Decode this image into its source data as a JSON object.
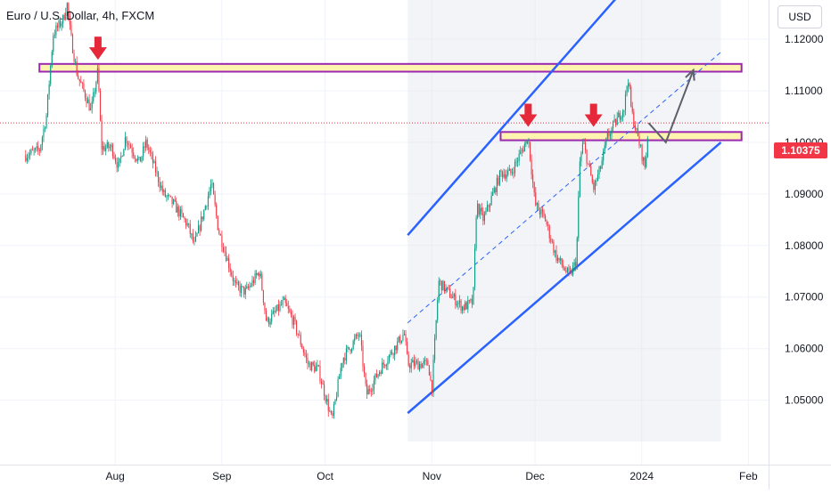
{
  "chart_title": "Euro / U.S. Dollar, 4h, FXCM",
  "currency_button": "USD",
  "current_price_label": "1.10375",
  "colors": {
    "up": "#089981",
    "down": "#f23645",
    "channel": "#2962ff",
    "zone_fill": "#fff3b0",
    "zone_border": "#9c27b0",
    "projection": "#5d606b",
    "marker": "#e5293a"
  },
  "chart_data": {
    "type": "candlestick",
    "symbol": "Euro / U.S. Dollar",
    "timeframe": "4h",
    "source": "FXCM",
    "x_tick_labels": [
      "Aug",
      "Sep",
      "Oct",
      "Nov",
      "Dec",
      "2024",
      "Feb"
    ],
    "y_tick_labels": [
      "1.12000",
      "1.11000",
      "1.10000",
      "1.09000",
      "1.08000",
      "1.07000",
      "1.06000",
      "1.05000"
    ],
    "ylim": [
      1.0415,
      1.1315
    ],
    "y_scale": "linear",
    "grid": true,
    "current_price": 1.10375,
    "price_path": [
      [
        "2023-07-06",
        1.0975
      ],
      [
        "2023-07-10",
        1.0985
      ],
      [
        "2023-07-12",
        1.105
      ],
      [
        "2023-07-14",
        1.121
      ],
      [
        "2023-07-17",
        1.124
      ],
      [
        "2023-07-18",
        1.127
      ],
      [
        "2023-07-19",
        1.121
      ],
      [
        "2023-07-21",
        1.113
      ],
      [
        "2023-07-24",
        1.108
      ],
      [
        "2023-07-25",
        1.106
      ],
      [
        "2023-07-27",
        1.114
      ],
      [
        "2023-07-28",
        1.099
      ],
      [
        "2023-07-31",
        1.099
      ],
      [
        "2023-08-02",
        1.095
      ],
      [
        "2023-08-04",
        1.101
      ],
      [
        "2023-08-08",
        1.096
      ],
      [
        "2023-08-10",
        1.1
      ],
      [
        "2023-08-15",
        1.09
      ],
      [
        "2023-08-18",
        1.088
      ],
      [
        "2023-08-22",
        1.084
      ],
      [
        "2023-08-24",
        1.08
      ],
      [
        "2023-08-29",
        1.092
      ],
      [
        "2023-08-31",
        1.083
      ],
      [
        "2023-09-05",
        1.072
      ],
      [
        "2023-09-08",
        1.071
      ],
      [
        "2023-09-12",
        1.075
      ],
      [
        "2023-09-14",
        1.065
      ],
      [
        "2023-09-19",
        1.069
      ],
      [
        "2023-09-22",
        1.065
      ],
      [
        "2023-09-26",
        1.057
      ],
      [
        "2023-09-29",
        1.056
      ],
      [
        "2023-10-03",
        1.046
      ],
      [
        "2023-10-06",
        1.058
      ],
      [
        "2023-10-11",
        1.063
      ],
      [
        "2023-10-13",
        1.051
      ],
      [
        "2023-10-17",
        1.056
      ],
      [
        "2023-10-20",
        1.059
      ],
      [
        "2023-10-24",
        1.063
      ],
      [
        "2023-10-25",
        1.057
      ],
      [
        "2023-10-27",
        1.057
      ],
      [
        "2023-10-31",
        1.057
      ],
      [
        "2023-11-01",
        1.052
      ],
      [
        "2023-11-03",
        1.073
      ],
      [
        "2023-11-07",
        1.07
      ],
      [
        "2023-11-10",
        1.068
      ],
      [
        "2023-11-13",
        1.069
      ],
      [
        "2023-11-14",
        1.088
      ],
      [
        "2023-11-16",
        1.085
      ],
      [
        "2023-11-21",
        1.094
      ],
      [
        "2023-11-24",
        1.094
      ],
      [
        "2023-11-29",
        1.101
      ],
      [
        "2023-12-01",
        1.088
      ],
      [
        "2023-12-04",
        1.085
      ],
      [
        "2023-12-07",
        1.078
      ],
      [
        "2023-12-11",
        1.074
      ],
      [
        "2023-12-13",
        1.077
      ],
      [
        "2023-12-14",
        1.096
      ],
      [
        "2023-12-15",
        1.1
      ],
      [
        "2023-12-18",
        1.091
      ],
      [
        "2023-12-20",
        1.095
      ],
      [
        "2023-12-22",
        1.101
      ],
      [
        "2023-12-27",
        1.107
      ],
      [
        "2023-12-28",
        1.113
      ],
      [
        "2023-12-29",
        1.106
      ],
      [
        "2024-01-02",
        1.095
      ],
      [
        "2024-01-03",
        1.10375
      ]
    ],
    "channel": {
      "upper": [
        [
          "2023-10-25",
          1.082
        ],
        [
          "2024-01-24",
          1.151
        ]
      ],
      "lower": [
        [
          "2023-10-25",
          1.0475
        ],
        [
          "2024-01-24",
          1.1
        ]
      ],
      "mid": [
        [
          "2023-10-25",
          1.065
        ],
        [
          "2024-01-24",
          1.1175
        ]
      ]
    },
    "channel_shade": {
      "from": "2023-10-25",
      "to": "2024-01-24"
    },
    "resistance_zone": {
      "from": "2023-07-10",
      "to": "2024-01-30",
      "low": 1.1137,
      "high": 1.1152
    },
    "support_zone": {
      "from": "2023-11-21",
      "to": "2024-01-30",
      "low": 1.1004,
      "high": 1.102
    },
    "down_markers": [
      {
        "date": "2023-07-27",
        "price": 1.116
      },
      {
        "date": "2023-11-29",
        "price": 1.103
      },
      {
        "date": "2023-12-18",
        "price": 1.103
      }
    ],
    "projection": [
      [
        "2024-01-03",
        1.10375
      ],
      [
        "2024-01-08",
        1.1
      ],
      [
        "2024-01-16",
        1.114
      ]
    ]
  }
}
